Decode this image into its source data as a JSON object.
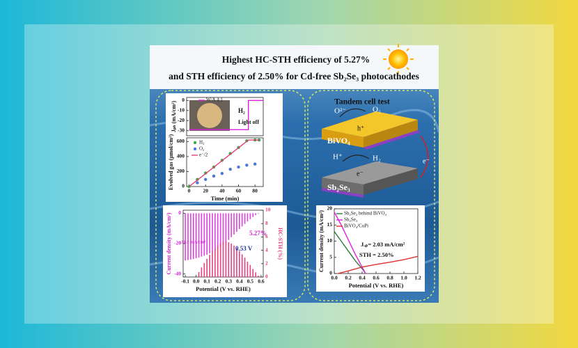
{
  "title": [
    "Highest HC-STH efficiency of 5.27%",
    "and STH efficiency of 2.50% for Cd-free Sb₂Se₃ photocathodes"
  ],
  "diagram": {
    "heading": "Tandem cell test",
    "labels": [
      "O²⁻",
      "O₂",
      "h⁺",
      "BiVO₄",
      "H⁺",
      "H₂",
      "e⁻",
      "Sb₂Se₃",
      "e⁻"
    ]
  },
  "chart_data": [
    {
      "type": "line",
      "ylabel": "Jₚₕ (mA/cm²)",
      "xlim": [
        -3,
        90
      ],
      "ylim": [
        -35,
        3
      ],
      "yticks": [
        0,
        -10,
        -20,
        -30
      ],
      "series": [
        {
          "name": "W/A 4:1",
          "color": "#e020e0",
          "x": [
            0,
            72,
            72,
            90
          ],
          "values": [
            -29,
            -29,
            0,
            0
          ]
        }
      ],
      "annotations": [
        "H₂",
        "Light off"
      ]
    },
    {
      "type": "scatter",
      "xlabel": "Time (min)",
      "ylabel": "Evolved gas (μmol/cm²)",
      "xlim": [
        -3,
        90
      ],
      "ylim": [
        0,
        650
      ],
      "xticks": [
        0,
        20,
        40,
        60,
        80
      ],
      "yticks": [
        0,
        200,
        400,
        600
      ],
      "series": [
        {
          "name": "H₂",
          "color": "#3aa845",
          "x": [
            0,
            10,
            20,
            30,
            40,
            50,
            60,
            70,
            80,
            85
          ],
          "values": [
            0,
            95,
            180,
            260,
            350,
            440,
            520,
            610,
            620,
            620
          ]
        },
        {
          "name": "O₂",
          "color": "#4a78d8",
          "x": [
            10,
            20,
            30,
            40,
            50,
            60,
            70,
            80
          ],
          "values": [
            50,
            95,
            140,
            175,
            230,
            260,
            285,
            300
          ]
        },
        {
          "name": "e⁻/2",
          "type": "line",
          "color": "#e0407a",
          "x": [
            0,
            72,
            85
          ],
          "values": [
            0,
            620,
            620
          ]
        }
      ]
    },
    {
      "type": "bar",
      "xlabel": "Potential (V vs. RHE)",
      "ylabel": "Current density (mA/cm²)",
      "y2label": "HC-STH (%)",
      "xlim": [
        -0.12,
        0.62
      ],
      "ylim": [
        -42,
        2
      ],
      "y2lim": [
        0,
        10
      ],
      "xticks": [
        -0.1,
        {
          "value": 0,
          "label": "0.0"
        },
        0.1,
        0.2,
        0.3,
        0.4,
        0.5,
        0.6
      ],
      "yticks": [
        0,
        -20,
        -40
      ],
      "y2ticks": [
        0,
        2,
        4,
        6,
        8,
        10
      ],
      "series": [
        {
          "color": "#e040e0",
          "x": [
            -0.1,
            -0.075,
            -0.05,
            -0.025,
            0,
            0.025,
            0.05,
            0.075,
            0.1,
            0.125,
            0.15,
            0.175,
            0.2,
            0.225,
            0.25,
            0.275,
            0.3,
            0.325,
            0.35,
            0.375,
            0.4,
            0.425,
            0.45,
            0.475,
            0.5,
            0.525,
            0.55,
            0.575,
            0.6
          ],
          "values": [
            -31.1,
            -30.8,
            -30.5,
            -30.1,
            -29.7,
            -29.2,
            -28.6,
            -28,
            -27.3,
            -26.5,
            -25.6,
            -24.6,
            -23.5,
            -22.3,
            -21,
            -19.4,
            -17.6,
            -15.8,
            -14,
            -12.2,
            -10.4,
            -8.7,
            -7,
            -5.4,
            -3.9,
            -2.5,
            -1.3,
            -0.4,
            0
          ]
        },
        {
          "color": "#e8407f",
          "axis": "y2",
          "x": [
            -0.1,
            -0.075,
            -0.05,
            -0.025,
            0,
            0.025,
            0.05,
            0.075,
            0.1,
            0.125,
            0.15,
            0.175,
            0.2,
            0.225,
            0.25,
            0.275,
            0.3,
            0.325,
            0.35,
            0.375,
            0.4,
            0.425,
            0.45,
            0.475,
            0.5,
            0.525,
            0.55,
            0.575,
            0.6
          ],
          "values": [
            0,
            0,
            0,
            0,
            0,
            0.73,
            1.43,
            2.1,
            2.73,
            3.31,
            3.84,
            4.31,
            4.7,
            5.02,
            5.2,
            5.27,
            5.2,
            5.0,
            4.7,
            4.3,
            3.9,
            3.4,
            2.9,
            2.3,
            1.8,
            1.2,
            0.7,
            0.2,
            0
          ]
        }
      ],
      "annotations": [
        "5.27%",
        "0.53 V",
        "-31.1 mA/cm²"
      ]
    },
    {
      "type": "line",
      "xlabel": "Potential (V vs. RHE)",
      "ylabel": "Current density (mA/cm²)",
      "xlim": [
        0,
        1.2
      ],
      "ylim": [
        0,
        20
      ],
      "xticks": [
        {
          "value": 0,
          "label": "0.0"
        },
        0.2,
        0.4,
        0.6,
        0.8,
        {
          "value": 1,
          "label": "1.0"
        },
        1.2
      ],
      "yticks": [
        0,
        5,
        10,
        15,
        20
      ],
      "series": [
        {
          "name": "Sb₂Se₃ behind BiVO₄",
          "color": "#2f7a3a",
          "x": [
            0,
            0.1,
            0.2,
            0.3,
            0.4,
            0.45
          ],
          "values": [
            13,
            10,
            7,
            4,
            1.5,
            0
          ]
        },
        {
          "name": "Sb₂Se₃",
          "color": "#e020e0",
          "x": [
            0,
            0.1,
            0.2,
            0.3,
            0.4,
            0.45
          ],
          "values": [
            19,
            15,
            10.5,
            6,
            2,
            0
          ]
        },
        {
          "name": "BiVO₄/CoPi",
          "color": "#e03030",
          "x": [
            0.05,
            0.2,
            0.4,
            0.6,
            0.8,
            1.0,
            1.2
          ],
          "values": [
            0,
            0.8,
            2,
            2.8,
            3.5,
            4.3,
            5.3
          ]
        }
      ],
      "annotations": [
        "Jₒₚ= 2.03 mA/cm²",
        "STH = 2.50%"
      ]
    }
  ]
}
